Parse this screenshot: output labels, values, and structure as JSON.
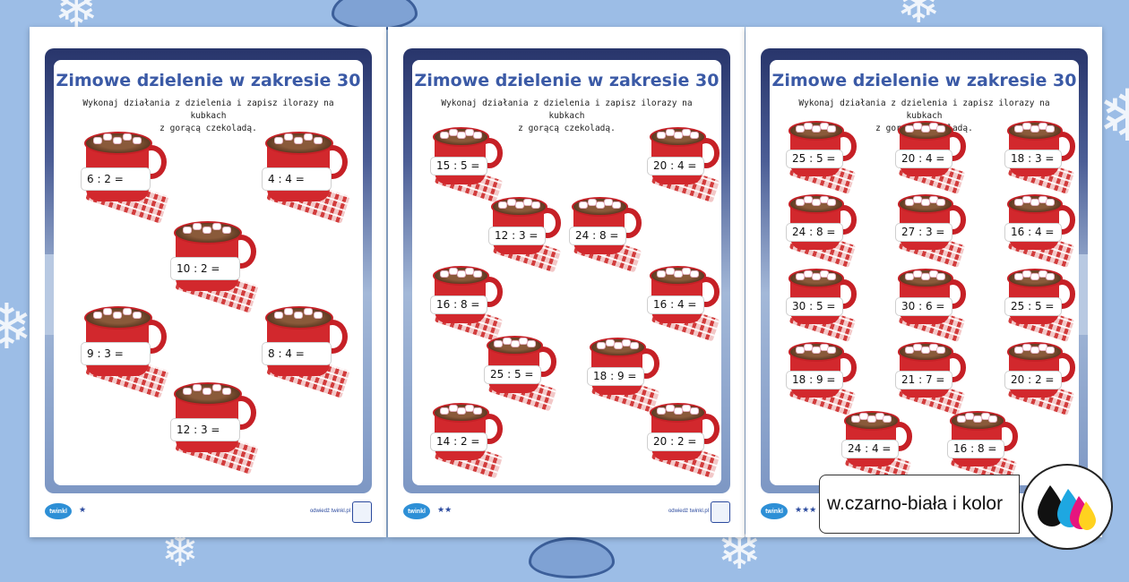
{
  "worksheet_title": "Zimowe dzielenie w zakresie 30",
  "instruction_line1": "Wykonaj działania z dzielenia i zapisz ilorazy na kubkach",
  "instruction_line2": "z gorącą czekoladą.",
  "footer": {
    "logo": "twinkl",
    "site": "odwiedź twinkl.pl"
  },
  "pages": [
    {
      "stars": "★",
      "equations": [
        "6 : 2 =",
        "4 : 4 =",
        "10 : 2 =",
        "9 : 3 =",
        "8 : 4 =",
        "12 : 3 ="
      ]
    },
    {
      "stars": "★★",
      "equations": [
        "15 : 5 =",
        "20 : 4 =",
        "12 : 3 =",
        "24 : 8 =",
        "16 : 8 =",
        "16 : 4 =",
        "25 : 5 =",
        "18 : 9 =",
        "14 : 2 =",
        "20 : 2 ="
      ]
    },
    {
      "stars": "★★★",
      "equations": [
        "25 : 5 =",
        "20 : 4 =",
        "18 : 3 =",
        "24 : 8 =",
        "27 : 3 =",
        "16 : 4 =",
        "30 : 5 =",
        "30 : 6 =",
        "25 : 5 =",
        "18 : 9 =",
        "21 : 7 =",
        "20 : 2 =",
        "24 : 4 =",
        "16 : 8 ="
      ]
    }
  ],
  "print_label": "w.czarno-biała i kolor",
  "icons": {
    "decor": "snowflake-icon",
    "print": "ink-drops-icon"
  },
  "colors": {
    "background": "#9cbde6",
    "title": "#3b5aa6",
    "mug": "#d2282d"
  }
}
